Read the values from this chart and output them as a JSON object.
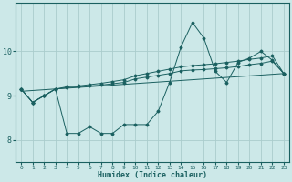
{
  "title": "",
  "xlabel": "Humidex (Indice chaleur)",
  "bg_color": "#cce8e8",
  "line_color": "#1a6060",
  "grid_color": "#aacccc",
  "xlim": [
    -0.5,
    23.5
  ],
  "ylim": [
    7.5,
    11.1
  ],
  "yticks": [
    8,
    9,
    10
  ],
  "xticks": [
    0,
    1,
    2,
    3,
    4,
    5,
    6,
    7,
    8,
    9,
    10,
    11,
    12,
    13,
    14,
    15,
    16,
    17,
    18,
    19,
    20,
    21,
    22,
    23
  ],
  "series1_x": [
    0,
    1,
    2,
    3,
    4,
    5,
    6,
    7,
    8,
    9,
    10,
    11,
    12,
    13,
    14,
    15,
    16,
    17,
    18,
    19,
    20,
    21,
    22,
    23
  ],
  "series1_y": [
    9.15,
    8.85,
    9.0,
    9.15,
    8.15,
    8.15,
    8.3,
    8.15,
    8.15,
    8.35,
    8.35,
    8.35,
    8.65,
    9.3,
    10.1,
    10.65,
    10.3,
    9.55,
    9.3,
    9.75,
    9.85,
    10.0,
    9.8,
    9.5
  ],
  "series2_x": [
    0,
    1,
    2,
    3,
    4,
    5,
    6,
    7,
    8,
    9,
    10,
    11,
    12,
    13,
    14,
    15,
    16,
    17,
    18,
    19,
    20,
    21,
    22,
    23
  ],
  "series2_y": [
    9.15,
    8.85,
    9.0,
    9.15,
    9.2,
    9.22,
    9.25,
    9.28,
    9.32,
    9.36,
    9.45,
    9.5,
    9.55,
    9.6,
    9.65,
    9.68,
    9.7,
    9.72,
    9.75,
    9.78,
    9.82,
    9.85,
    9.9,
    9.5
  ],
  "series3_x": [
    0,
    1,
    2,
    3,
    4,
    5,
    6,
    7,
    8,
    9,
    10,
    11,
    12,
    13,
    14,
    15,
    16,
    17,
    18,
    19,
    20,
    21,
    22,
    23
  ],
  "series3_y": [
    9.15,
    8.85,
    9.0,
    9.15,
    9.18,
    9.2,
    9.22,
    9.24,
    9.27,
    9.3,
    9.38,
    9.42,
    9.46,
    9.5,
    9.56,
    9.58,
    9.59,
    9.61,
    9.63,
    9.66,
    9.7,
    9.73,
    9.78,
    9.5
  ],
  "series4_x": [
    0,
    23
  ],
  "series4_y": [
    9.1,
    9.5
  ]
}
